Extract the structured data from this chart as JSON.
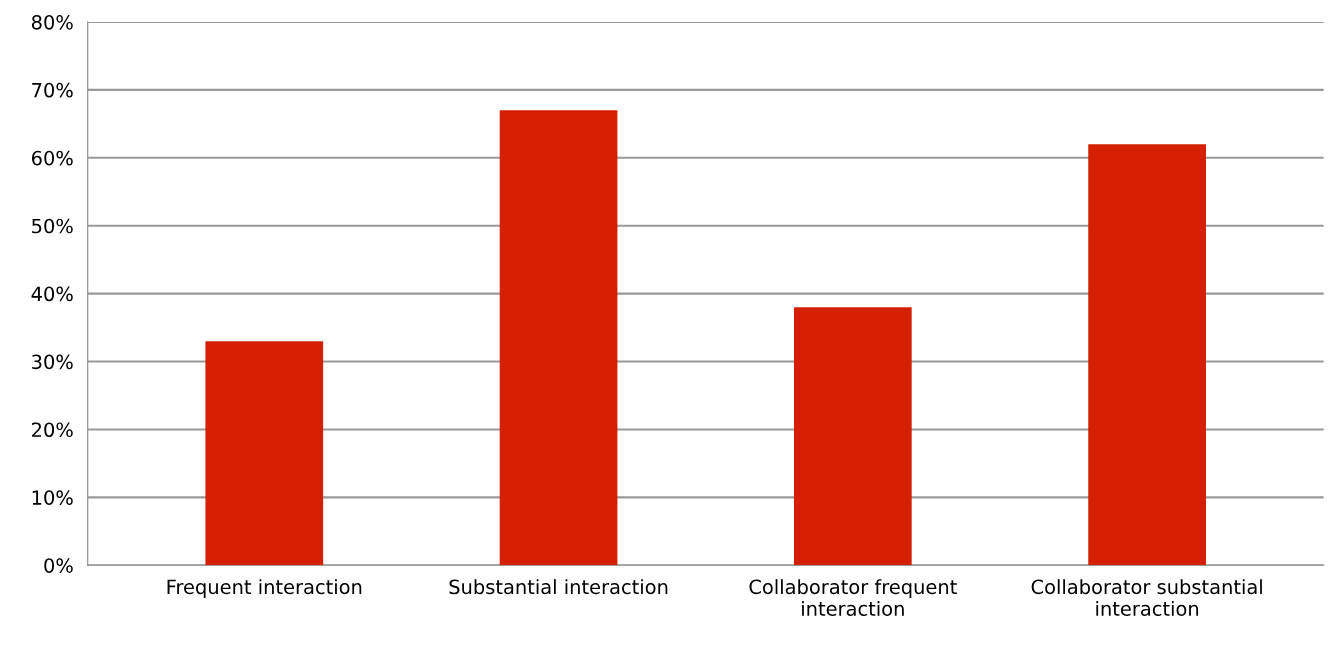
{
  "chart_data": {
    "type": "bar",
    "categories": [
      "Frequent interaction",
      "Substantial interaction",
      "Collaborator frequent\ninteraction",
      "Collaborator substantial\ninteraction"
    ],
    "values": [
      33,
      67,
      38,
      62
    ],
    "color": "#d42000",
    "ylim": [
      0,
      80
    ],
    "yticks": [
      {
        "value": 0,
        "label": "0%"
      },
      {
        "value": 10,
        "label": "10%"
      },
      {
        "value": 20,
        "label": "20%"
      },
      {
        "value": 30,
        "label": "30%"
      },
      {
        "value": 40,
        "label": "40%"
      },
      {
        "value": 50,
        "label": "50%"
      },
      {
        "value": 60,
        "label": "60%"
      },
      {
        "value": 70,
        "label": "70%"
      },
      {
        "value": 80,
        "label": "80%"
      }
    ],
    "grid": "y",
    "legend": false
  }
}
